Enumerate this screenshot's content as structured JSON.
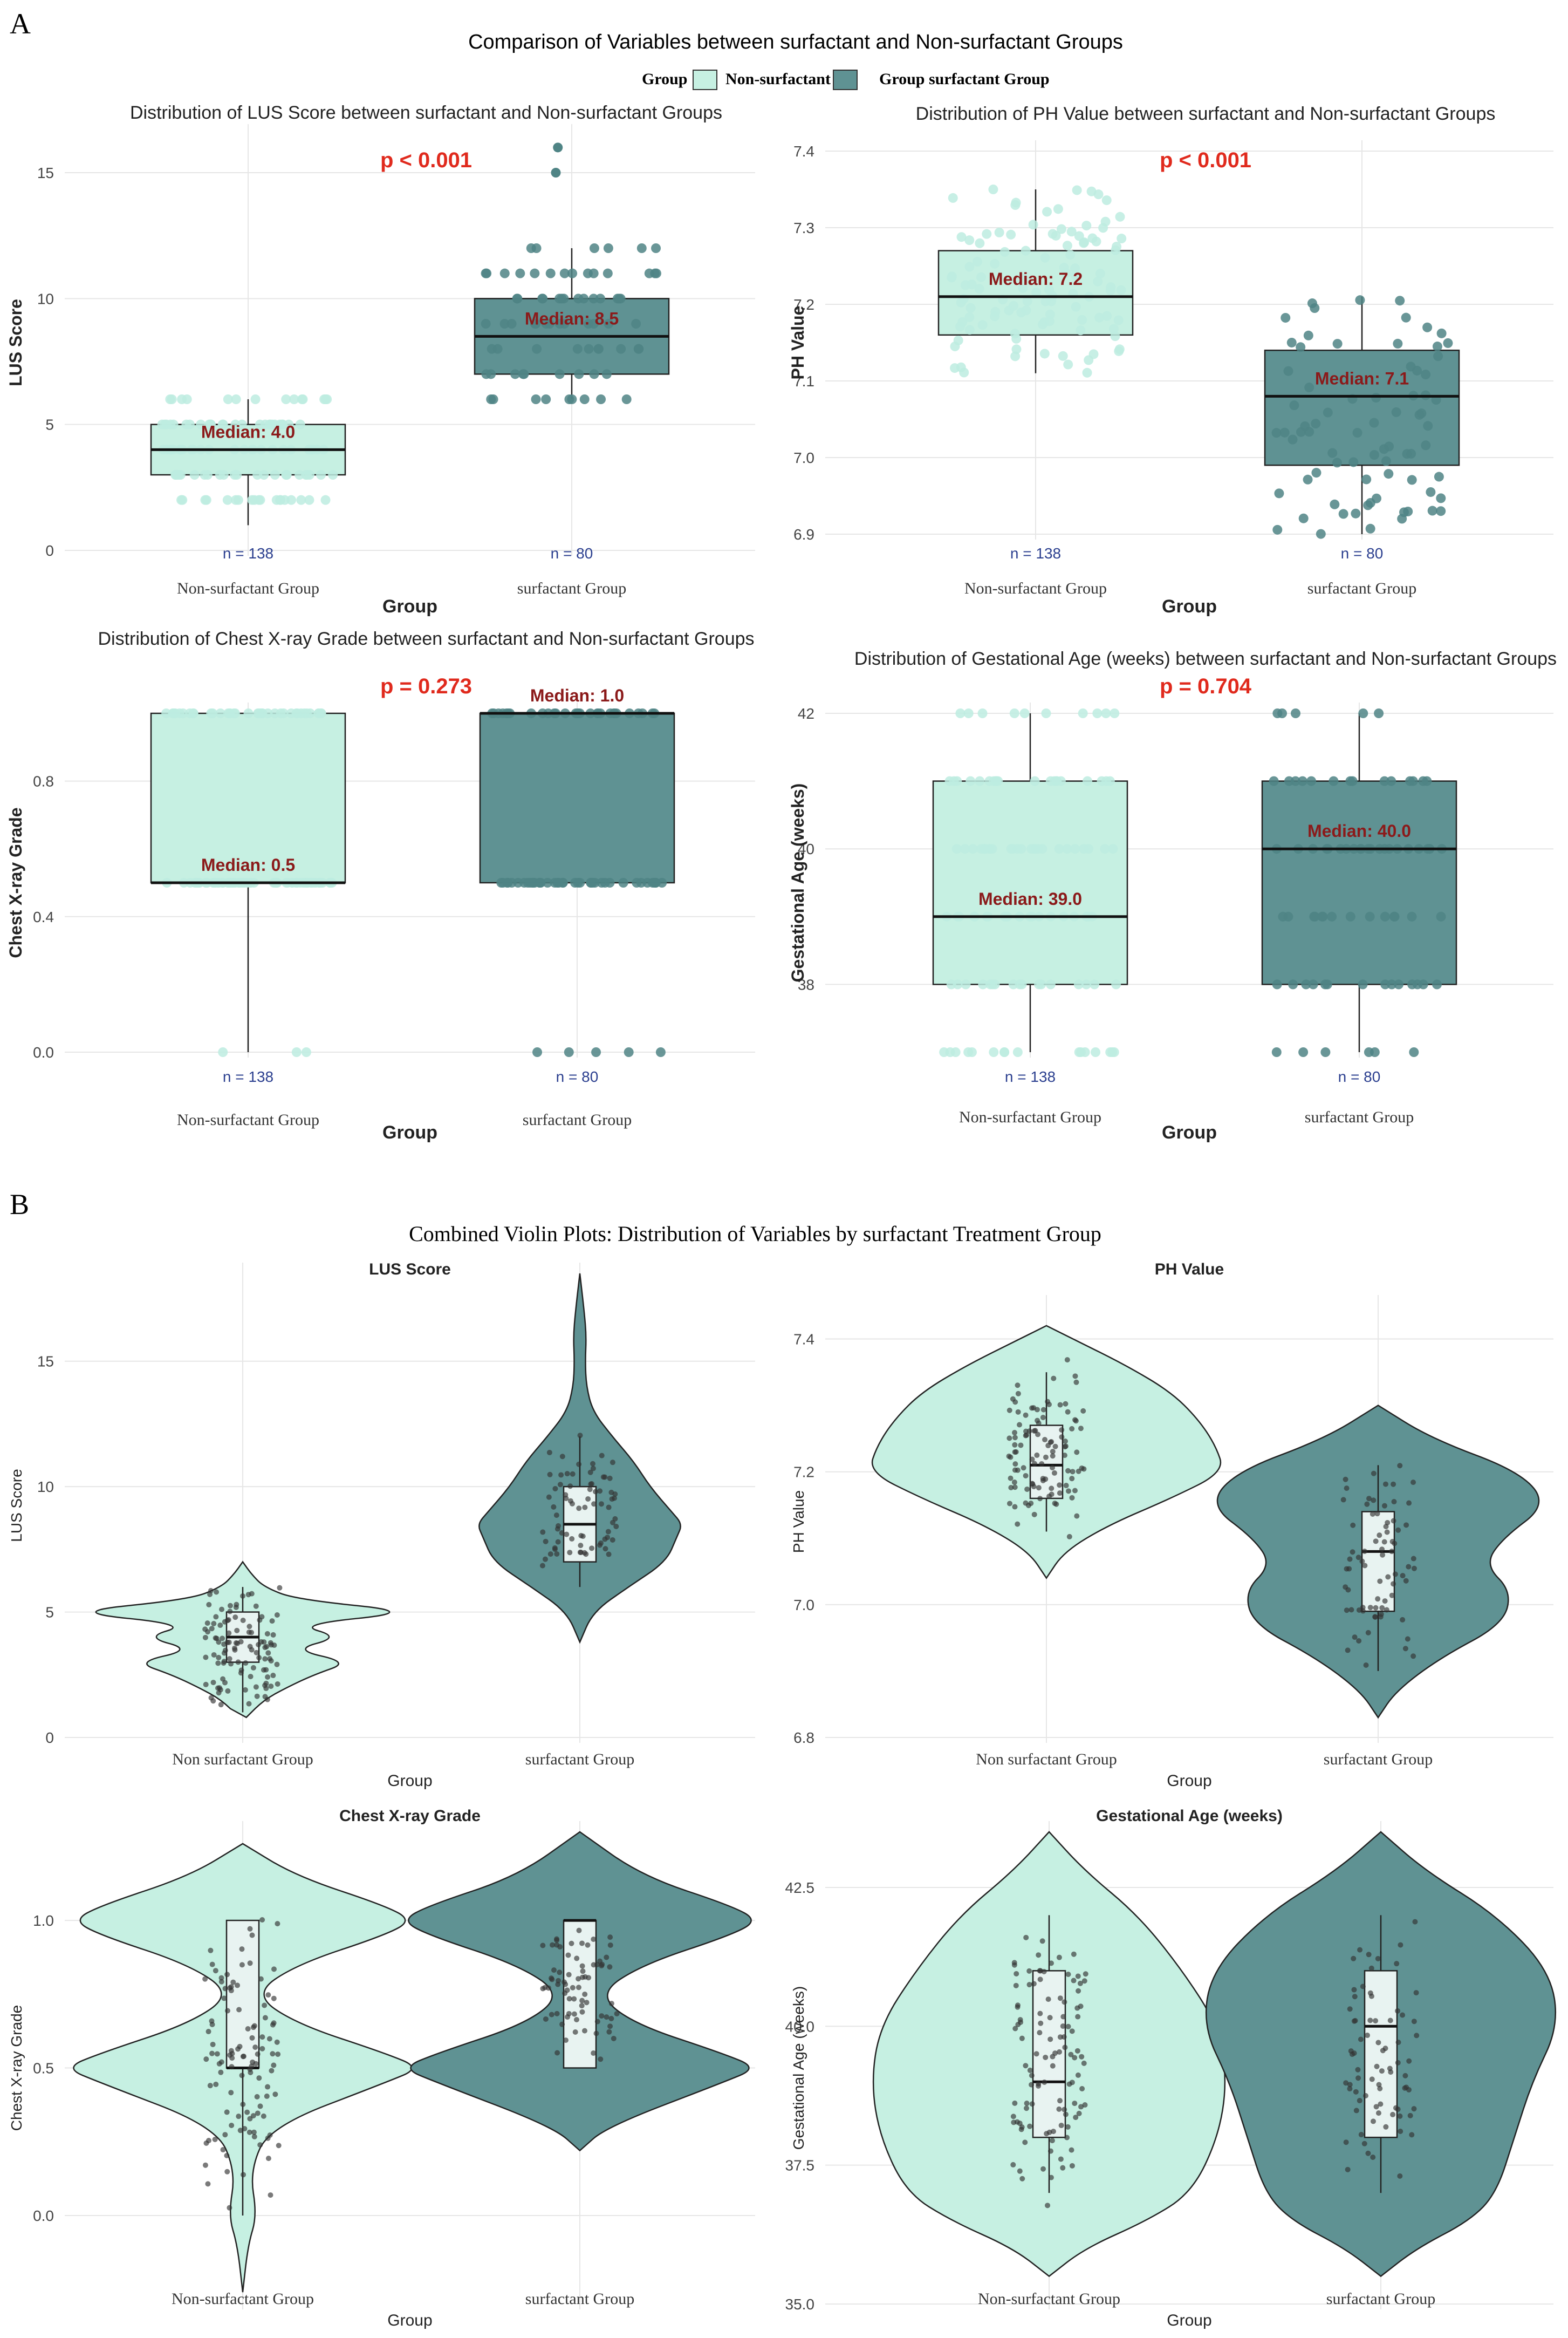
{
  "colors": {
    "non": "#c6f0e2",
    "surf": "#5f9293",
    "grid": "#e6e6e6",
    "pval": "#e02a1d",
    "median": "#8b1a1a",
    "ncount": "#2b3f8f",
    "non_point": "#bdece0",
    "surf_point": "#4f8485"
  },
  "panelA": {
    "label": "A",
    "title": "Comparison of Variables between surfactant and Non-surfactant Groups",
    "legend": {
      "title": "Group",
      "items": [
        "Non-surfactant",
        "Group surfactant  Group"
      ]
    }
  },
  "panelB": {
    "label": "B",
    "title": "Combined Violin Plots: Distribution of Variables by surfactant Treatment Group"
  },
  "chart_data": [
    {
      "id": "a1",
      "type": "box",
      "title": "Distribution of LUS Score between surfactant and Non-surfactant Groups",
      "xlabel": "Group",
      "ylabel": "LUS Score",
      "categories": [
        "Non-surfactant Group",
        "surfactant Group"
      ],
      "ylim": [
        0,
        16.5
      ],
      "yticks": [
        0,
        5,
        10,
        15
      ],
      "p_value": "p < 0.001",
      "n": [
        "n = 138",
        "n = 80"
      ],
      "median_labels": [
        "Median: 4.0",
        "Median: 8.5"
      ],
      "boxes": [
        {
          "q1": 3,
          "median": 4,
          "q3": 5,
          "lo": 1,
          "hi": 6
        },
        {
          "q1": 7,
          "median": 8.5,
          "q3": 10,
          "lo": 6,
          "hi": 12
        }
      ],
      "outliers": [
        [],
        [
          15,
          16
        ]
      ]
    },
    {
      "id": "a2",
      "type": "box",
      "title": "Distribution of PH Value between surfactant and Non-surfactant Groups",
      "xlabel": "Group",
      "ylabel": "PH Value",
      "categories": [
        "Non-surfactant Group",
        "surfactant Group"
      ],
      "ylim": [
        6.9,
        7.4
      ],
      "yticks": [
        6.9,
        7.0,
        7.1,
        7.2,
        7.3,
        7.4
      ],
      "p_value": "p < 0.001",
      "n": [
        "n = 138",
        "n = 80"
      ],
      "median_labels": [
        "Median: 7.2",
        "Median: 7.1"
      ],
      "boxes": [
        {
          "q1": 7.16,
          "median": 7.21,
          "q3": 7.27,
          "lo": 7.11,
          "hi": 7.35
        },
        {
          "q1": 6.99,
          "median": 7.08,
          "q3": 7.14,
          "lo": 6.9,
          "hi": 7.21
        }
      ],
      "outliers": [
        [],
        []
      ]
    },
    {
      "id": "a3",
      "type": "box",
      "title": "Distribution of Chest X-ray Grade between surfactant and Non-surfactant Groups",
      "xlabel": "Group",
      "ylabel": "Chest X-ray Grade",
      "categories": [
        "Non-surfactant Group",
        "surfactant Group"
      ],
      "ylim": [
        0,
        1
      ],
      "yticks": [
        0.0,
        0.4,
        0.8
      ],
      "p_value": "p = 0.273",
      "n": [
        "n = 138",
        "n = 80"
      ],
      "median_labels": [
        "Median: 0.5",
        "Median: 1.0"
      ],
      "boxes": [
        {
          "q1": 0.5,
          "median": 0.5,
          "q3": 1.0,
          "lo": 0.0,
          "hi": 1.0
        },
        {
          "q1": 0.5,
          "median": 1.0,
          "q3": 1.0,
          "lo": 0.5,
          "hi": 1.0
        }
      ],
      "outliers": [
        [],
        []
      ]
    },
    {
      "id": "a4",
      "type": "box",
      "title": "Distribution of Gestational Age (weeks) between surfactant and Non-surfactant Groups",
      "xlabel": "Group",
      "ylabel": "Gestational Age (weeks)",
      "categories": [
        "Non-surfactant Group",
        "surfactant Group"
      ],
      "ylim": [
        37,
        42
      ],
      "yticks": [
        38,
        40,
        42
      ],
      "p_value": "p = 0.704",
      "n": [
        "n = 138",
        "n = 80"
      ],
      "median_labels": [
        "Median: 39.0",
        "Median: 40.0"
      ],
      "boxes": [
        {
          "q1": 38,
          "median": 39,
          "q3": 41,
          "lo": 37,
          "hi": 42
        },
        {
          "q1": 38,
          "median": 40,
          "q3": 41,
          "lo": 37,
          "hi": 42
        }
      ],
      "outliers": [
        [],
        []
      ]
    },
    {
      "id": "b1",
      "type": "violin",
      "title": "LUS Score",
      "xlabel": "Group",
      "ylabel": "LUS Score",
      "categories": [
        "Non surfactant Group",
        "surfactant Group"
      ],
      "ylim": [
        0,
        18.5
      ],
      "yticks": [
        0,
        5,
        10,
        15
      ],
      "boxes": [
        {
          "q1": 3,
          "median": 4,
          "q3": 5,
          "lo": 1,
          "hi": 6
        },
        {
          "q1": 7,
          "median": 8.5,
          "q3": 10,
          "lo": 6,
          "hi": 12
        }
      ]
    },
    {
      "id": "b2",
      "type": "violin",
      "title": "PH Value",
      "xlabel": "Group",
      "ylabel": "PH Value",
      "categories": [
        "Non surfactant Group",
        "surfactant Group"
      ],
      "ylim": [
        6.8,
        7.45
      ],
      "yticks": [
        6.8,
        7.0,
        7.2,
        7.4
      ],
      "boxes": [
        {
          "q1": 7.16,
          "median": 7.21,
          "q3": 7.27,
          "lo": 7.11,
          "hi": 7.35
        },
        {
          "q1": 6.99,
          "median": 7.08,
          "q3": 7.14,
          "lo": 6.9,
          "hi": 7.21
        }
      ]
    },
    {
      "id": "b3",
      "type": "violin",
      "title": "Chest X-ray Grade",
      "xlabel": "Group",
      "ylabel": "Chest X-ray Grade",
      "categories": [
        "Non-surfactant Group",
        "surfactant Group"
      ],
      "ylim": [
        -0.3,
        1.3
      ],
      "yticks": [
        0.0,
        0.5,
        1.0
      ],
      "boxes": [
        {
          "q1": 0.5,
          "median": 0.5,
          "q3": 1.0,
          "lo": 0.0,
          "hi": 1.0
        },
        {
          "q1": 0.5,
          "median": 1.0,
          "q3": 1.0,
          "lo": 0.5,
          "hi": 1.0
        }
      ]
    },
    {
      "id": "b4",
      "type": "violin",
      "title": "Gestational Age (weeks)",
      "xlabel": "Group",
      "ylabel": "Gestational Age (weeks)",
      "categories": [
        "Non-surfactant Group",
        "surfactant Group"
      ],
      "ylim": [
        35,
        43.5
      ],
      "yticks": [
        35.0,
        37.5,
        40.0,
        42.5
      ],
      "boxes": [
        {
          "q1": 38,
          "median": 39,
          "q3": 41,
          "lo": 37,
          "hi": 42
        },
        {
          "q1": 38,
          "median": 40,
          "q3": 41,
          "lo": 37,
          "hi": 42
        }
      ]
    }
  ]
}
